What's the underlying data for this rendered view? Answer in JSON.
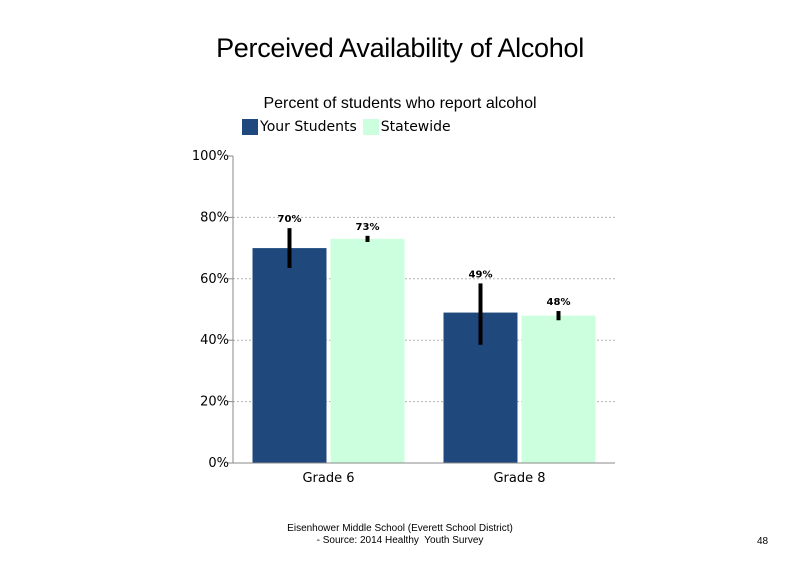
{
  "chart_data": {
    "type": "bar",
    "title": "Perceived Availability of Alcohol",
    "subtitle": "Percent of students  who report alcohol",
    "categories": [
      "Grade 6",
      "Grade 8"
    ],
    "series": [
      {
        "name": "Your Students",
        "color": "#1f497d",
        "values": [
          70,
          49
        ],
        "labels": [
          "70%",
          "49%"
        ],
        "error_bars": [
          [
            63.5,
            76.5
          ],
          [
            38.5,
            58.5
          ]
        ]
      },
      {
        "name": "Statewide",
        "color": "#ccffdd",
        "values": [
          73,
          48
        ],
        "labels": [
          "73%",
          "48%"
        ],
        "error_bars": [
          [
            72,
            74
          ],
          [
            46.5,
            49.5
          ]
        ]
      }
    ],
    "y_ticks": [
      "0%",
      "20%",
      "40%",
      "60%",
      "80%",
      "100%"
    ],
    "ylim": [
      0,
      100
    ],
    "grid": true,
    "legend_position": "top-left"
  },
  "footer": {
    "line1": "Eisenhower Middle School (Everett School District)",
    "line2": "- Source: 2014 Healthy  Youth Survey"
  },
  "page_number": "48"
}
